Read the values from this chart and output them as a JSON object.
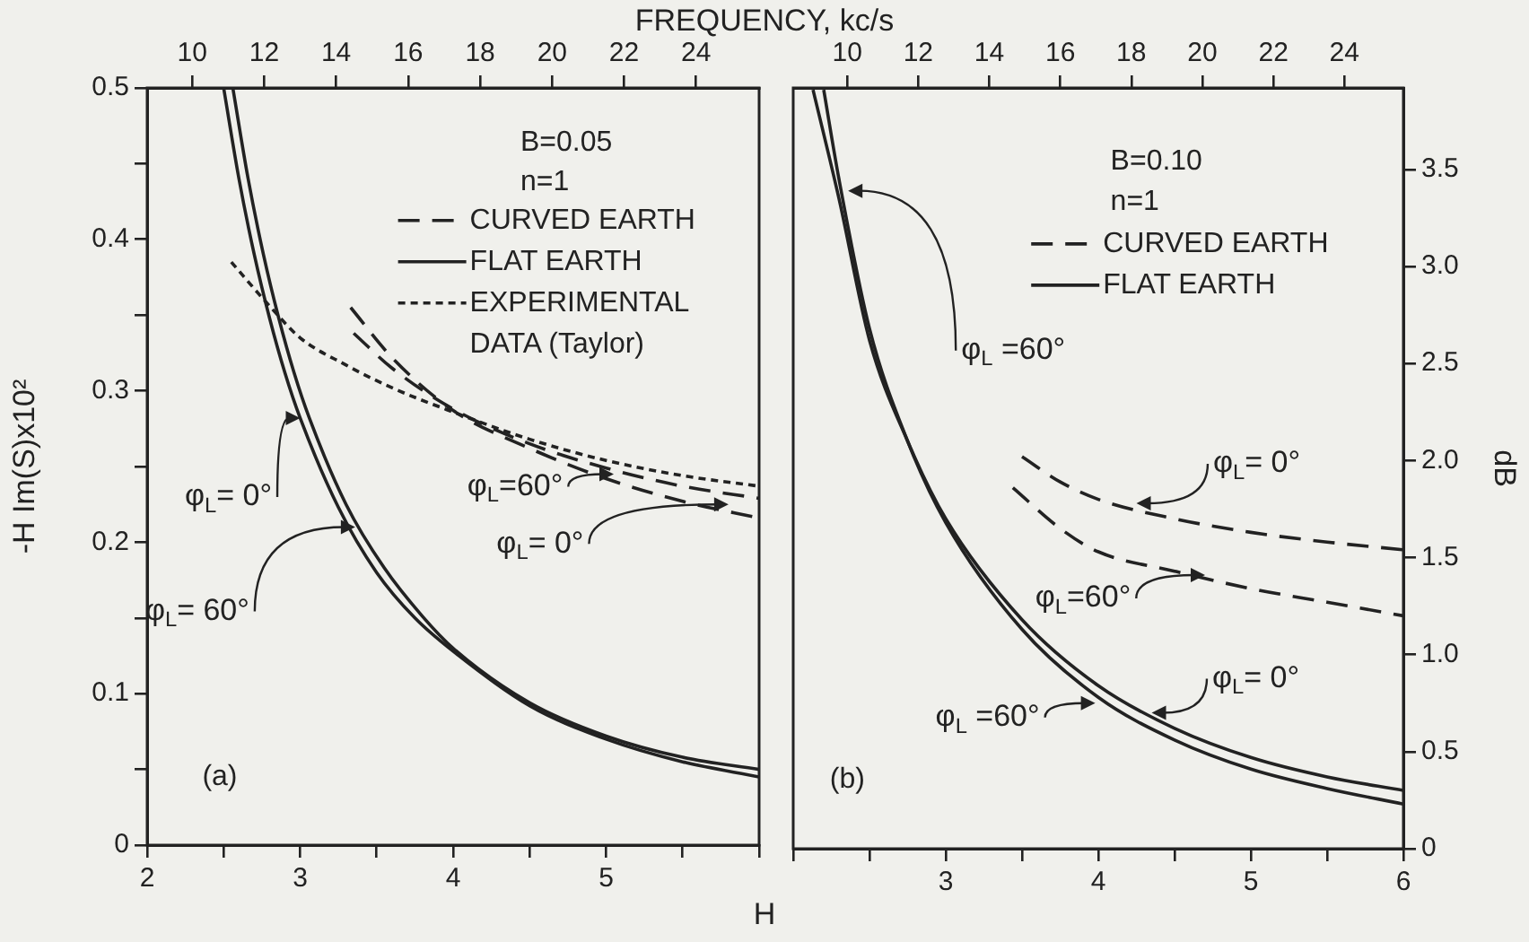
{
  "chart_data": [
    {
      "type": "line",
      "x2label": "FREQUENCY, kc/s",
      "xlabel": "H",
      "ylabel": "-H Im(S)x10²",
      "legend": "top right",
      "xlim": [
        2,
        6
      ],
      "xticks": [
        2,
        {
          "value": 2.5,
          "label": null
        },
        3,
        {
          "value": 3.5,
          "label": null
        },
        4,
        {
          "value": 4.5,
          "label": null
        },
        5,
        {
          "value": 5.5,
          "label": null
        },
        {
          "value": 6,
          "label": null
        }
      ],
      "ylim": [
        0,
        0.5
      ],
      "yticks": [
        0,
        {
          "value": 0.05,
          "label": null
        },
        0.1,
        {
          "value": 0.15,
          "label": null
        },
        0.2,
        {
          "value": 0.25,
          "label": null
        },
        0.3,
        {
          "value": 0.35,
          "label": null
        },
        0.4,
        {
          "value": 0.45,
          "label": null
        },
        0.5
      ],
      "x2lim": [
        8.75,
        25.75
      ],
      "x2ticks": [
        10,
        12,
        14,
        16,
        18,
        20,
        22,
        24
      ],
      "series": [
        {
          "name": "CURVED EARTH",
          "color": "#222222",
          "line_style": "dashed",
          "x": [
            3.33,
            3.6,
            4.0,
            4.5,
            5.0,
            5.5,
            6.0
          ],
          "values": [
            0.355,
            0.322,
            0.287,
            0.262,
            0.242,
            0.227,
            0.216
          ]
        },
        {
          "color": "#222222",
          "line_style": "dashed",
          "x": [
            3.35,
            3.6,
            4.0,
            4.5,
            5.0,
            5.5,
            6.0
          ],
          "values": [
            0.338,
            0.315,
            0.288,
            0.265,
            0.249,
            0.237,
            0.229
          ]
        },
        {
          "name": "FLAT EARTH",
          "color": "#222222",
          "line_style": "solid",
          "x": [
            2.5,
            2.6,
            2.7,
            2.8,
            2.9,
            3.0,
            3.25,
            3.5,
            3.75,
            4.0,
            4.5,
            5.0,
            5.5,
            6.0
          ],
          "values": [
            0.5,
            0.44,
            0.39,
            0.348,
            0.312,
            0.282,
            0.223,
            0.18,
            0.15,
            0.128,
            0.092,
            0.07,
            0.055,
            0.045
          ]
        },
        {
          "color": "#222222",
          "line_style": "solid",
          "x": [
            2.56,
            2.66,
            2.76,
            2.86,
            2.96,
            3.06,
            3.3,
            3.55,
            3.8,
            4.0,
            4.5,
            5.0,
            5.5,
            6.0
          ],
          "values": [
            0.5,
            0.44,
            0.39,
            0.348,
            0.312,
            0.282,
            0.225,
            0.183,
            0.151,
            0.13,
            0.094,
            0.072,
            0.058,
            0.05
          ]
        },
        {
          "name": "EXPERIMENTAL DATA (Taylor)",
          "color": "#222222",
          "line_style": "dotted",
          "x": [
            2.55,
            2.8,
            3.0,
            3.3,
            3.6,
            4.0,
            4.5,
            5.0,
            5.5,
            6.0
          ],
          "values": [
            0.385,
            0.356,
            0.335,
            0.317,
            0.302,
            0.286,
            0.268,
            0.254,
            0.244,
            0.237
          ]
        }
      ],
      "annotations": [
        "B=0.05",
        "n=1",
        "(a)",
        {
          "text": "φ$_{L}$= 0°",
          "x": 3.0,
          "y": 0.282
        },
        {
          "text": "φ$_{L}$= 60°",
          "x": 3.36,
          "y": 0.21
        },
        {
          "text": "φ$_{L}$=60°",
          "x": 5.05,
          "y": 0.245
        },
        {
          "text": "φ$_{L}$= 0°",
          "x": 5.8,
          "y": 0.225
        }
      ]
    },
    {
      "type": "line",
      "ylabel": "dB",
      "legend": "top right",
      "xlim": [
        2,
        6
      ],
      "xticks": [
        {
          "value": 2,
          "label": null
        },
        {
          "value": 2.5,
          "label": null
        },
        3,
        {
          "value": 3.5,
          "label": null
        },
        4,
        {
          "value": 4.5,
          "label": null
        },
        5,
        {
          "value": 5.5,
          "label": null
        },
        6
      ],
      "ylim": [
        0,
        3.92
      ],
      "yticks": [
        0,
        0.5,
        {
          "value": 1,
          "label": "1.0"
        },
        1.5,
        {
          "value": 2,
          "label": "2.0"
        },
        2.5,
        {
          "value": 3,
          "label": "3.0"
        },
        3.5
      ],
      "x2lim": [
        8.48,
        25.66
      ],
      "x2ticks": [
        10,
        12,
        14,
        16,
        18,
        20,
        22,
        24
      ],
      "series": [
        {
          "name": "CURVED EARTH",
          "color": "#222222",
          "line_style": "dashed",
          "x": [
            3.5,
            3.75,
            4.0,
            4.5,
            5.0,
            5.5,
            6.0
          ],
          "values": [
            2.02,
            1.89,
            1.8,
            1.7,
            1.63,
            1.58,
            1.54
          ]
        },
        {
          "color": "#222222",
          "line_style": "dashed",
          "x": [
            3.44,
            3.75,
            4.0,
            4.5,
            5.0,
            5.5,
            6.0
          ],
          "values": [
            1.86,
            1.65,
            1.53,
            1.43,
            1.34,
            1.27,
            1.2
          ]
        },
        {
          "name": "FLAT EARTH",
          "color": "#222222",
          "line_style": "solid",
          "x": [
            2.13,
            2.3,
            2.5,
            2.75,
            3.0,
            3.5,
            4.0,
            4.5,
            5.0,
            5.5,
            6.0
          ],
          "values": [
            3.91,
            3.35,
            2.62,
            2.1,
            1.7,
            1.18,
            0.84,
            0.62,
            0.47,
            0.37,
            0.3
          ]
        },
        {
          "color": "#222222",
          "line_style": "solid",
          "x": [
            2.2,
            2.3,
            2.5,
            2.75,
            3.0,
            3.5,
            4.0,
            4.5,
            5.0,
            5.5,
            6.0
          ],
          "values": [
            3.91,
            3.45,
            2.68,
            2.1,
            1.68,
            1.13,
            0.78,
            0.56,
            0.41,
            0.31,
            0.23
          ]
        }
      ],
      "annotations": [
        "B=0.10",
        "n=1",
        "(b)",
        {
          "text": "φ$_{L}$ =60°",
          "x": 2.36,
          "y": 3.39
        },
        {
          "text": "φ$_{L}$= 0°",
          "x": 4.25,
          "y": 1.78
        },
        {
          "text": "φ$_{L}$=60°",
          "x": 4.7,
          "y": 1.41
        },
        {
          "text": "φ$_{L}$ =60°",
          "x": 3.98,
          "y": 0.75
        },
        {
          "text": "φ$_{L}$= 0°",
          "x": 4.35,
          "y": 0.7
        }
      ]
    }
  ]
}
